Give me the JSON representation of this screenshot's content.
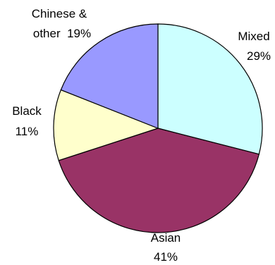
{
  "chart_data": {
    "type": "pie",
    "slices": [
      {
        "label_line1": "Mixed",
        "label_line2": "29%",
        "value": 29,
        "color": "#ccffff"
      },
      {
        "label_line1": "Asian",
        "label_line2": "41%",
        "value": 41,
        "color": "#993366"
      },
      {
        "label_line1": "Black",
        "label_line2": "11%",
        "value": 11,
        "color": "#ffffcc"
      },
      {
        "label_line1": "Chinese &",
        "label_line2": "other  19%",
        "value": 19,
        "color": "#9999ff"
      }
    ],
    "title": "",
    "legend": "none"
  }
}
